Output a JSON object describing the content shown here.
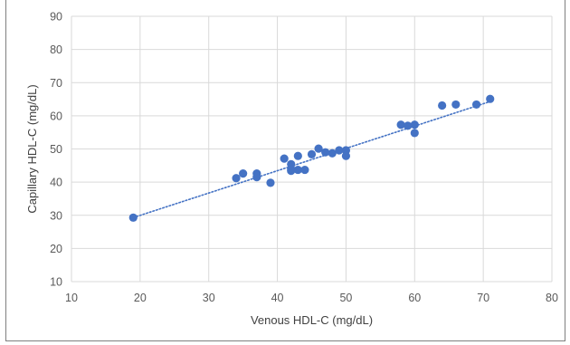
{
  "chart_data": {
    "type": "scatter",
    "title": "",
    "xlabel": "Venous HDL-C (mg/dL)",
    "ylabel": "Capillary HDL-C (mg/dL)",
    "xlim": [
      10,
      80
    ],
    "ylim": [
      10,
      90
    ],
    "x_ticks": [
      10,
      20,
      30,
      40,
      50,
      60,
      70,
      80
    ],
    "y_ticks": [
      10,
      20,
      30,
      40,
      50,
      60,
      70,
      80,
      90
    ],
    "grid": true,
    "legend": "none",
    "marker_color": "#4472c4",
    "trendline": {
      "type": "linear",
      "style": "dotted",
      "color": "#4472c4",
      "x": [
        19,
        71
      ],
      "y": [
        29.3,
        64.3
      ]
    },
    "series": [
      {
        "points": [
          {
            "x": 19,
            "y": 29.3
          },
          {
            "x": 34,
            "y": 41.2
          },
          {
            "x": 35,
            "y": 42.6
          },
          {
            "x": 37,
            "y": 42.6
          },
          {
            "x": 37,
            "y": 41.5
          },
          {
            "x": 39,
            "y": 39.8
          },
          {
            "x": 41,
            "y": 47.1
          },
          {
            "x": 42,
            "y": 45.4
          },
          {
            "x": 42,
            "y": 44.0
          },
          {
            "x": 42,
            "y": 43.4
          },
          {
            "x": 43,
            "y": 47.9
          },
          {
            "x": 43,
            "y": 43.7
          },
          {
            "x": 44,
            "y": 43.7
          },
          {
            "x": 45,
            "y": 48.4
          },
          {
            "x": 46,
            "y": 50.1
          },
          {
            "x": 47,
            "y": 49.0
          },
          {
            "x": 48,
            "y": 48.7
          },
          {
            "x": 49,
            "y": 49.6
          },
          {
            "x": 50,
            "y": 49.6
          },
          {
            "x": 50,
            "y": 47.9
          },
          {
            "x": 58,
            "y": 57.3
          },
          {
            "x": 59,
            "y": 57.0
          },
          {
            "x": 60,
            "y": 57.3
          },
          {
            "x": 60,
            "y": 54.8
          },
          {
            "x": 64,
            "y": 63.1
          },
          {
            "x": 66,
            "y": 63.4
          },
          {
            "x": 69,
            "y": 63.4
          },
          {
            "x": 71,
            "y": 65.1
          }
        ]
      }
    ]
  }
}
